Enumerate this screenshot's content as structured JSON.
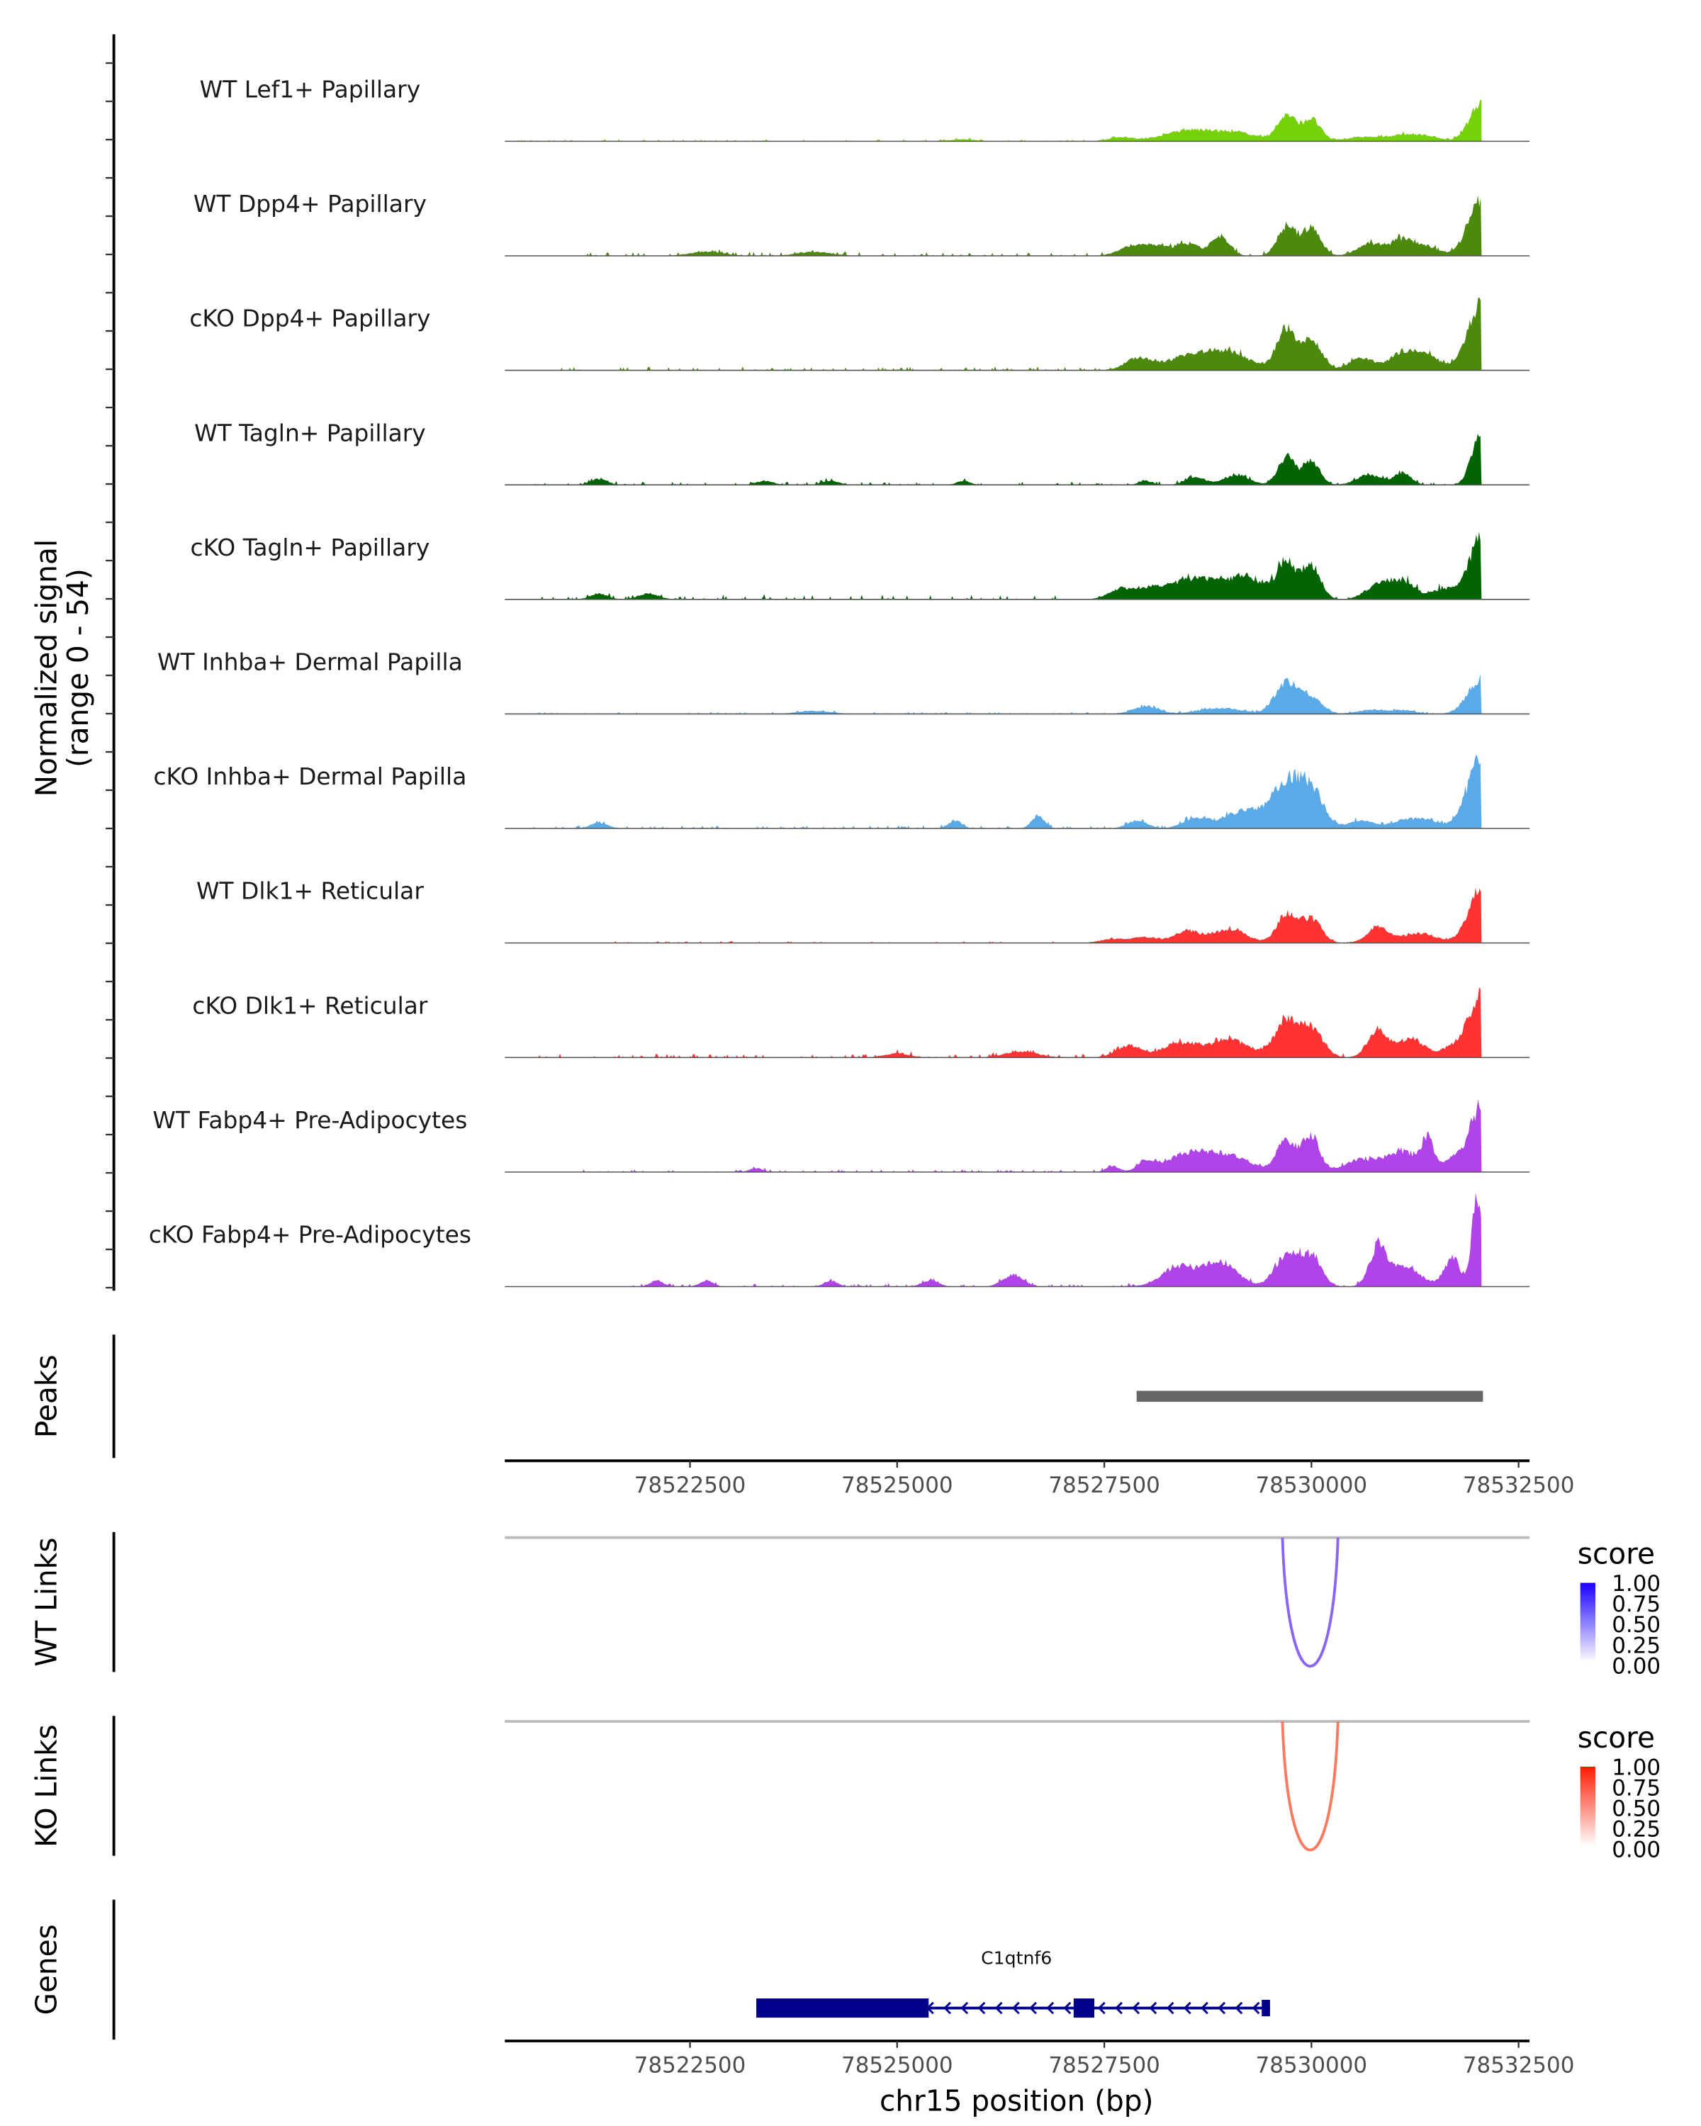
{
  "chart_data": {
    "type": "area",
    "ylabel": "Normalized signal",
    "ylabel_range": "(range 0 - 54)",
    "ylim": [
      0,
      54
    ],
    "xlabel": "chr15 position (bp)",
    "xlim": [
      78520265,
      78532632
    ],
    "xticks": [
      78522500,
      78525000,
      78527500,
      78530000,
      78532500
    ],
    "xtick_labels": [
      "78522500",
      "78525000",
      "78527500",
      "78530000",
      "78532500"
    ],
    "signal_end": 78532053,
    "tracks": [
      {
        "name": "WT Lef1+ Papillary",
        "color": "#77d10a",
        "noise": 0.6,
        "start": 78520265,
        "peaks": [
          [
            78525800,
            1,
            150
          ],
          [
            78527700,
            2,
            150
          ],
          [
            78528400,
            4,
            250
          ],
          [
            78528800,
            4,
            250
          ],
          [
            78529200,
            3,
            200
          ],
          [
            78529700,
            13,
            110
          ],
          [
            78530000,
            11,
            110
          ],
          [
            78530600,
            2,
            200
          ],
          [
            78531100,
            3,
            200
          ],
          [
            78531400,
            2,
            150
          ],
          [
            78532053,
            20,
            140
          ]
        ]
      },
      {
        "name": "WT Dpp4+ Papillary",
        "color": "#4b8a0c",
        "noise": 1.2,
        "start": 78520900,
        "peaks": [
          [
            78522700,
            2,
            200
          ],
          [
            78524000,
            2,
            200
          ],
          [
            78527800,
            4,
            150
          ],
          [
            78528100,
            5,
            150
          ],
          [
            78528500,
            6,
            150
          ],
          [
            78528900,
            9,
            110
          ],
          [
            78529700,
            15,
            110
          ],
          [
            78530000,
            14,
            110
          ],
          [
            78530700,
            6,
            150
          ],
          [
            78531100,
            8,
            150
          ],
          [
            78531400,
            4,
            150
          ],
          [
            78532053,
            28,
            160
          ]
        ]
      },
      {
        "name": "cKO Dpp4+ Papillary",
        "color": "#4b8a0c",
        "noise": 1.2,
        "start": 78520900,
        "peaks": [
          [
            78527900,
            6,
            150
          ],
          [
            78528500,
            7,
            250
          ],
          [
            78529000,
            9,
            250
          ],
          [
            78529700,
            20,
            120
          ],
          [
            78530000,
            15,
            120
          ],
          [
            78530600,
            6,
            150
          ],
          [
            78531100,
            9,
            150
          ],
          [
            78531400,
            7,
            150
          ],
          [
            78532053,
            33,
            170
          ]
        ]
      },
      {
        "name": "WT Tagln+ Papillary",
        "color": "#036403",
        "noise": 1.0,
        "start": 78520600,
        "peaks": [
          [
            78521400,
            3,
            100
          ],
          [
            78523400,
            2,
            100
          ],
          [
            78524200,
            2,
            100
          ],
          [
            78525800,
            2,
            80
          ],
          [
            78528000,
            2,
            80
          ],
          [
            78528600,
            4,
            120
          ],
          [
            78529100,
            5,
            150
          ],
          [
            78529700,
            14,
            100
          ],
          [
            78530000,
            12,
            100
          ],
          [
            78530700,
            5,
            150
          ],
          [
            78531100,
            6,
            100
          ],
          [
            78532053,
            28,
            110
          ]
        ]
      },
      {
        "name": "cKO Tagln+ Papillary",
        "color": "#036403",
        "noise": 1.5,
        "start": 78520600,
        "peaks": [
          [
            78521400,
            3,
            100
          ],
          [
            78522000,
            3,
            120
          ],
          [
            78527700,
            5,
            150
          ],
          [
            78528100,
            5,
            200
          ],
          [
            78528600,
            10,
            250
          ],
          [
            78529200,
            11,
            250
          ],
          [
            78529700,
            18,
            110
          ],
          [
            78530000,
            17,
            110
          ],
          [
            78530800,
            7,
            150
          ],
          [
            78531100,
            9,
            150
          ],
          [
            78531600,
            5,
            150
          ],
          [
            78532053,
            32,
            150
          ]
        ]
      },
      {
        "name": "WT Inhba+ Dermal Papilla",
        "color": "#5aaae8",
        "noise": 0.6,
        "start": 78520600,
        "peaks": [
          [
            78524000,
            1.5,
            200
          ],
          [
            78528000,
            4,
            150
          ],
          [
            78528900,
            3,
            250
          ],
          [
            78529700,
            16,
            140
          ],
          [
            78530000,
            8,
            130
          ],
          [
            78530700,
            2,
            150
          ],
          [
            78531100,
            2,
            150
          ],
          [
            78532053,
            18,
            160
          ]
        ]
      },
      {
        "name": "cKO Inhba+ Dermal Papilla",
        "color": "#5aaae8",
        "noise": 1.0,
        "start": 78520600,
        "peaks": [
          [
            78521400,
            3,
            100
          ],
          [
            78525700,
            4,
            80
          ],
          [
            78526700,
            6,
            80
          ],
          [
            78527900,
            4,
            120
          ],
          [
            78528600,
            5,
            150
          ],
          [
            78529200,
            9,
            250
          ],
          [
            78529700,
            22,
            170
          ],
          [
            78530000,
            18,
            150
          ],
          [
            78530600,
            4,
            150
          ],
          [
            78531100,
            4,
            150
          ],
          [
            78531400,
            4,
            150
          ],
          [
            78532053,
            35,
            170
          ]
        ]
      },
      {
        "name": "WT Dlk1+ Reticular",
        "color": "#ff3333",
        "noise": 0.6,
        "start": 78521400,
        "peaks": [
          [
            78527600,
            2,
            150
          ],
          [
            78528000,
            3,
            150
          ],
          [
            78528500,
            6,
            150
          ],
          [
            78529000,
            7,
            200
          ],
          [
            78529700,
            14,
            120
          ],
          [
            78530000,
            12,
            120
          ],
          [
            78530800,
            8,
            130
          ],
          [
            78531300,
            5,
            200
          ],
          [
            78532053,
            30,
            150
          ]
        ]
      },
      {
        "name": "cKO Dlk1+ Reticular",
        "color": "#ff3333",
        "noise": 1.2,
        "start": 78520600,
        "peaks": [
          [
            78525000,
            2,
            150
          ],
          [
            78526500,
            3,
            200
          ],
          [
            78527800,
            6,
            150
          ],
          [
            78528400,
            7,
            200
          ],
          [
            78529000,
            9,
            250
          ],
          [
            78529700,
            18,
            140
          ],
          [
            78530000,
            14,
            140
          ],
          [
            78530800,
            14,
            120
          ],
          [
            78531200,
            10,
            150
          ],
          [
            78531700,
            5,
            150
          ],
          [
            78532053,
            32,
            150
          ]
        ]
      },
      {
        "name": "WT Fabp4+ Pre-Adipocytes",
        "color": "#b044e8",
        "noise": 0.8,
        "start": 78521200,
        "peaks": [
          [
            78523300,
            2,
            80
          ],
          [
            78527600,
            3,
            80
          ],
          [
            78528000,
            5,
            100
          ],
          [
            78528500,
            9,
            250
          ],
          [
            78529000,
            8,
            250
          ],
          [
            78529700,
            16,
            120
          ],
          [
            78530000,
            18,
            100
          ],
          [
            78530600,
            6,
            200
          ],
          [
            78531100,
            10,
            200
          ],
          [
            78531400,
            14,
            70
          ],
          [
            78531800,
            8,
            200
          ],
          [
            78532053,
            30,
            120
          ]
        ]
      },
      {
        "name": "cKO Fabp4+ Pre-Adipocytes",
        "color": "#b044e8",
        "noise": 1.0,
        "start": 78521800,
        "peaks": [
          [
            78522100,
            3,
            80
          ],
          [
            78522700,
            3,
            80
          ],
          [
            78524200,
            3,
            80
          ],
          [
            78525400,
            3,
            100
          ],
          [
            78526400,
            6,
            120
          ],
          [
            78528400,
            10,
            200
          ],
          [
            78528900,
            12,
            200
          ],
          [
            78529700,
            16,
            140
          ],
          [
            78530000,
            15,
            120
          ],
          [
            78530800,
            18,
            100
          ],
          [
            78531100,
            10,
            200
          ],
          [
            78531700,
            14,
            100
          ],
          [
            78532000,
            48,
            60
          ]
        ]
      }
    ],
    "peaks_track": {
      "label": "Peaks",
      "color": "#666666",
      "regions": [
        [
          78527890,
          78532070
        ]
      ]
    },
    "links": [
      {
        "label": "WT Links",
        "color": "#8a63f7",
        "start": 78529650,
        "end": 78530320,
        "score": 0.6
      },
      {
        "label": "KO Links",
        "color": "#fa7a5e",
        "start": 78529650,
        "end": 78530320,
        "score": 0.6
      }
    ],
    "legends": [
      {
        "title": "score",
        "low": "#ffffff",
        "high": "#1a00ff",
        "labels": [
          "1.00",
          "0.75",
          "0.50",
          "0.25",
          "0.00"
        ]
      },
      {
        "title": "score",
        "low": "#ffffff",
        "high": "#ff1a00",
        "labels": [
          "1.00",
          "0.75",
          "0.50",
          "0.25",
          "0.00"
        ]
      }
    ],
    "genes_track": {
      "label": "Genes",
      "color": "#00008b",
      "gene": {
        "name": "C1qtnf6",
        "start": 78523300,
        "end": 78529500,
        "strand": "-",
        "exons": [
          [
            78523300,
            78525380
          ],
          [
            78527130,
            78527380
          ],
          [
            78529400,
            78529500
          ]
        ]
      }
    }
  }
}
